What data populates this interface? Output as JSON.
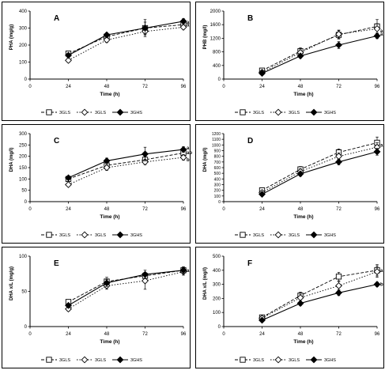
{
  "legend_labels": [
    "3GLS",
    "3GLS",
    "3GHS"
  ],
  "chart_data": [
    {
      "type": "line",
      "panel_letter": "A",
      "x": [
        24,
        48,
        72,
        96
      ],
      "xlim": [
        0,
        96
      ],
      "xticks": [
        0,
        24,
        48,
        72,
        96
      ],
      "xlabel": "Time (h)",
      "ylabel": "PHA (mg/g)",
      "ylim": [
        0,
        400
      ],
      "yticks": [
        0,
        100,
        200,
        300,
        400
      ],
      "series": [
        {
          "name": "3GLS",
          "marker": "square",
          "dash": "dashed",
          "values": [
            150,
            250,
            300,
            320
          ],
          "err": [
            12,
            15,
            35,
            15
          ]
        },
        {
          "name": "3GLS",
          "marker": "diamond",
          "dash": "dotted",
          "values": [
            110,
            230,
            280,
            305
          ],
          "err": [
            12,
            15,
            20,
            12
          ]
        },
        {
          "name": "3GHS",
          "marker": "filled-diamond",
          "dash": "solid",
          "values": [
            140,
            260,
            300,
            340
          ],
          "err": [
            12,
            12,
            50,
            15
          ]
        }
      ],
      "annotations": [
        {
          "text": "a",
          "x": 96,
          "y": 335
        },
        {
          "text": "a",
          "x": 96,
          "y": 318
        }
      ]
    },
    {
      "type": "line",
      "panel_letter": "B",
      "x": [
        24,
        48,
        72,
        96
      ],
      "xlim": [
        0,
        96
      ],
      "xticks": [
        0,
        24,
        48,
        72,
        96
      ],
      "xlabel": "Time (h)",
      "ylabel": "PHB (mg/l)",
      "ylim": [
        0,
        2000
      ],
      "yticks": [
        0,
        400,
        800,
        1200,
        1600,
        2000
      ],
      "series": [
        {
          "name": "3GLS",
          "marker": "square",
          "dash": "dashed",
          "values": [
            250,
            820,
            1300,
            1550
          ],
          "err": [
            40,
            100,
            120,
            200
          ]
        },
        {
          "name": "3GLS",
          "marker": "diamond",
          "dash": "dotted",
          "values": [
            200,
            780,
            1320,
            1480
          ],
          "err": [
            40,
            80,
            120,
            150
          ]
        },
        {
          "name": "3GHS",
          "marker": "filled-diamond",
          "dash": "solid",
          "values": [
            170,
            680,
            1000,
            1270
          ],
          "err": [
            30,
            60,
            100,
            80
          ]
        }
      ],
      "annotations": [
        {
          "text": "a",
          "x": 96,
          "y": 1420
        },
        {
          "text": "a",
          "x": 96,
          "y": 1320
        }
      ]
    },
    {
      "type": "line",
      "panel_letter": "C",
      "x": [
        24,
        48,
        72,
        96
      ],
      "xlim": [
        0,
        96
      ],
      "xticks": [
        0,
        24,
        48,
        72,
        96
      ],
      "xlabel": "Time (h)",
      "ylabel": "DHA (mg/l)",
      "ylim": [
        0,
        300
      ],
      "yticks": [
        0,
        50,
        100,
        150,
        200,
        250,
        300
      ],
      "series": [
        {
          "name": "3GLS",
          "marker": "square",
          "dash": "dashed",
          "values": [
            100,
            160,
            185,
            215
          ],
          "err": [
            8,
            12,
            15,
            15
          ]
        },
        {
          "name": "3GLS",
          "marker": "diamond",
          "dash": "dotted",
          "values": [
            75,
            150,
            175,
            195
          ],
          "err": [
            8,
            12,
            12,
            12
          ]
        },
        {
          "name": "3GHS",
          "marker": "filled-diamond",
          "dash": "solid",
          "values": [
            105,
            180,
            210,
            230
          ],
          "err": [
            8,
            12,
            30,
            12
          ]
        }
      ],
      "annotations": [
        {
          "text": "a",
          "x": 96,
          "y": 238
        },
        {
          "text": "ab",
          "x": 96,
          "y": 217
        },
        {
          "text": "b",
          "x": 96,
          "y": 185
        }
      ]
    },
    {
      "type": "line",
      "panel_letter": "D",
      "x": [
        24,
        48,
        72,
        96
      ],
      "xlim": [
        0,
        96
      ],
      "xticks": [
        0,
        24,
        48,
        72,
        96
      ],
      "xlabel": "Time (h)",
      "ylabel": "DHA (mg/l)",
      "ylim": [
        0,
        1200
      ],
      "yticks": [
        0,
        100,
        200,
        300,
        400,
        500,
        600,
        700,
        800,
        900,
        1000,
        1100,
        1200
      ],
      "series": [
        {
          "name": "3GLS",
          "marker": "square",
          "dash": "dashed",
          "values": [
            200,
            570,
            870,
            1040
          ],
          "err": [
            30,
            50,
            60,
            100
          ]
        },
        {
          "name": "3GLS",
          "marker": "diamond",
          "dash": "dotted",
          "values": [
            160,
            530,
            800,
            960
          ],
          "err": [
            30,
            50,
            60,
            80
          ]
        },
        {
          "name": "3GHS",
          "marker": "filled-diamond",
          "dash": "solid",
          "values": [
            130,
            490,
            700,
            880
          ],
          "err": [
            20,
            40,
            50,
            60
          ]
        }
      ],
      "annotations": [
        {
          "text": "a",
          "x": 96,
          "y": 1000
        }
      ]
    },
    {
      "type": "line",
      "panel_letter": "E",
      "x": [
        24,
        48,
        72,
        96
      ],
      "xlim": [
        0,
        96
      ],
      "xticks": [
        0,
        24,
        48,
        72,
        96
      ],
      "xlabel": "Time (h)",
      "ylabel": "DHA x/L (mg/g)",
      "ylim": [
        0,
        100
      ],
      "yticks": [
        0,
        50,
        100
      ],
      "series": [
        {
          "name": "3GLS",
          "marker": "square",
          "dash": "dashed",
          "values": [
            35,
            64,
            72,
            80
          ],
          "err": [
            3,
            6,
            5,
            5
          ]
        },
        {
          "name": "3GLS",
          "marker": "diamond",
          "dash": "dotted",
          "values": [
            25,
            58,
            65,
            78
          ],
          "err": [
            3,
            5,
            12,
            5
          ]
        },
        {
          "name": "3GHS",
          "marker": "filled-diamond",
          "dash": "solid",
          "values": [
            30,
            62,
            74,
            80
          ],
          "err": [
            3,
            5,
            6,
            5
          ]
        }
      ],
      "annotations": [
        {
          "text": "a",
          "x": 96,
          "y": 80
        }
      ]
    },
    {
      "type": "line",
      "panel_letter": "F",
      "x": [
        24,
        48,
        72,
        96
      ],
      "xlim": [
        0,
        96
      ],
      "xticks": [
        0,
        24,
        48,
        72,
        96
      ],
      "xlabel": "Time (h)",
      "ylabel": "DHA x/L (mg/l)",
      "ylim": [
        0,
        500
      ],
      "yticks": [
        0,
        100,
        200,
        300,
        400,
        500
      ],
      "series": [
        {
          "name": "3GLS",
          "marker": "square",
          "dash": "dashed",
          "values": [
            65,
            220,
            355,
            400
          ],
          "err": [
            10,
            25,
            30,
            40
          ]
        },
        {
          "name": "3GLS",
          "marker": "diamond",
          "dash": "dotted",
          "values": [
            60,
            205,
            290,
            390
          ],
          "err": [
            10,
            25,
            30,
            40
          ]
        },
        {
          "name": "3GHS",
          "marker": "filled-diamond",
          "dash": "solid",
          "values": [
            45,
            165,
            240,
            300
          ],
          "err": [
            8,
            15,
            20,
            15
          ]
        }
      ],
      "annotations": [
        {
          "text": "a",
          "x": 96,
          "y": 400
        },
        {
          "text": "b",
          "x": 96,
          "y": 300
        }
      ]
    }
  ]
}
